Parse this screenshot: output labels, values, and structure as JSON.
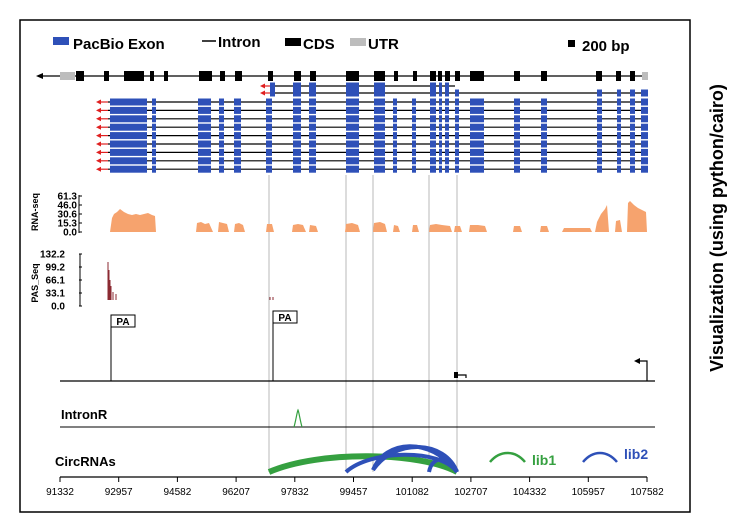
{
  "legend": {
    "exon_label": "PacBio Exon",
    "intron_label": "Intron",
    "cds_label": "CDS",
    "utr_label": "UTR",
    "scale_label": "200 bp"
  },
  "side_title": "Visualization (using python/cairo)",
  "tracks": {
    "rnaseq": {
      "label": "RNA-seq",
      "ticks": [
        "61.3",
        "46.0",
        "30.6",
        "15.3",
        "0.0"
      ]
    },
    "passeq": {
      "label": "PAS_Seq",
      "ticks": [
        "132.2",
        "99.2",
        "66.1",
        "33.1",
        "0.0"
      ]
    },
    "pa_labels": [
      "PA",
      "PA"
    ],
    "intronr_label": "IntronR",
    "circrnas_label": "CircRNAs",
    "lib1_label": "lib1",
    "lib2_label": "lib2"
  },
  "axis": {
    "ticks": [
      "91332",
      "92957",
      "94582",
      "96207",
      "97832",
      "99457",
      "101082",
      "102707",
      "104332",
      "105957",
      "107582"
    ]
  },
  "colors": {
    "exon_blue": "#2e50b8",
    "rnaseq_orange": "#f6a36e",
    "pas_red": "#8b2a32",
    "lib1_green": "#35a040",
    "lib2_blue": "#2e50b8",
    "arrow_red": "#e02020",
    "guide_gray": "#b8b8b8",
    "utr_gray": "#bdbdbd"
  }
}
